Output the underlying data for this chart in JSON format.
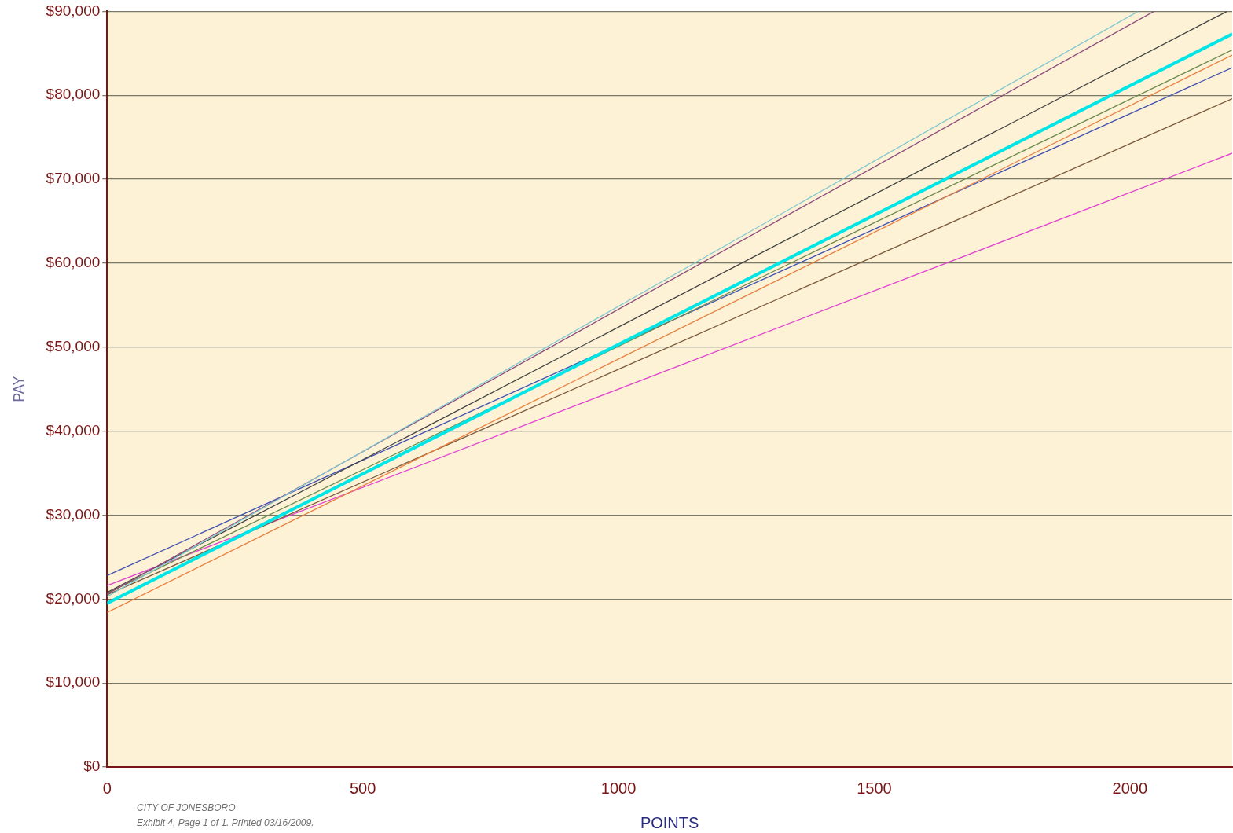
{
  "chart_data": {
    "type": "line",
    "xlabel": "POINTS",
    "ylabel": "PAY",
    "annotations": [
      "CITY OF JONESBORO",
      "Exhibit 4, Page 1 of 1. Printed 03/16/2009."
    ],
    "xlim": [
      0,
      2200
    ],
    "xticks": [
      0,
      500,
      1000,
      1500,
      2000
    ],
    "ylim": [
      0,
      90000
    ],
    "yticks": [
      {
        "value": 0,
        "label": "$0"
      },
      {
        "value": 10000,
        "label": "$10,000"
      },
      {
        "value": 20000,
        "label": "$20,000"
      },
      {
        "value": 30000,
        "label": "$30,000"
      },
      {
        "value": 40000,
        "label": "$40,000"
      },
      {
        "value": 50000,
        "label": "$50,000"
      },
      {
        "value": 60000,
        "label": "$60,000"
      },
      {
        "value": 70000,
        "label": "$70,000"
      },
      {
        "value": 80000,
        "label": "$80,000"
      },
      {
        "value": 90000,
        "label": "$90,000"
      }
    ],
    "grid": "y",
    "legend": false,
    "marker": "none",
    "line_style": "solid",
    "series": [
      {
        "color": "#7fc8d0",
        "x": [
          0,
          2016
        ],
        "values": [
          20300,
          90000
        ]
      },
      {
        "color": "#8b4a7a",
        "x": [
          0,
          2047
        ],
        "values": [
          20600,
          90000
        ]
      },
      {
        "color": "#404040",
        "x": [
          0,
          2190
        ],
        "values": [
          20800,
          90000
        ]
      },
      {
        "color": "#00e5e5",
        "x": [
          0,
          2200
        ],
        "values": [
          19500,
          87300
        ]
      },
      {
        "color": "#6a8a4a",
        "x": [
          0,
          2200
        ],
        "values": [
          20700,
          85400
        ]
      },
      {
        "color": "#e88040",
        "x": [
          0,
          2200
        ],
        "values": [
          18400,
          84800
        ]
      },
      {
        "color": "#4050b0",
        "x": [
          0,
          2200
        ],
        "values": [
          22800,
          83300
        ]
      },
      {
        "color": "#7a5a3a",
        "x": [
          0,
          2200
        ],
        "values": [
          20500,
          79600
        ]
      },
      {
        "color": "#e040d0",
        "x": [
          0,
          2200
        ],
        "values": [
          21600,
          73100
        ]
      }
    ]
  }
}
